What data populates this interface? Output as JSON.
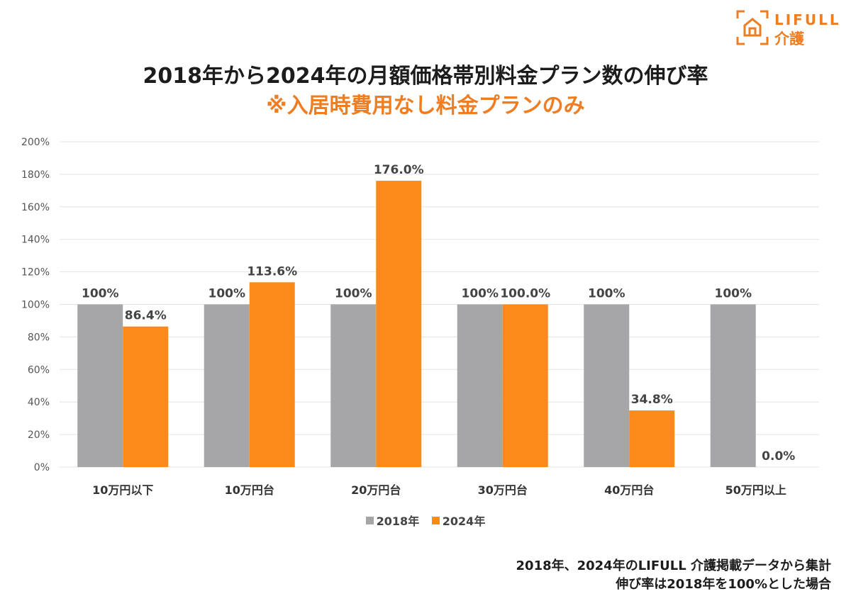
{
  "logo": {
    "brand": "LIFULL",
    "service": "介護"
  },
  "title": "2018年から2024年の月額価格帯別料金プラン数の伸び率",
  "subtitle": "※入居時費用なし料金プランのみ",
  "colors": {
    "series_2018": "#a6a5a7",
    "series_2024": "#fb8a1b",
    "accent": "#ef7d22",
    "grid": "#e3e3e3"
  },
  "chart_data": {
    "type": "bar",
    "title": "2018年から2024年の月額価格帯別料金プラン数の伸び率",
    "subtitle": "※入居時費用なし料金プランのみ",
    "categories": [
      "10万円以下",
      "10万円台",
      "20万円台",
      "30万円台",
      "40万円台",
      "50万円以上"
    ],
    "series": [
      {
        "name": "2018年",
        "values": [
          100,
          100,
          100,
          100,
          100,
          100
        ],
        "labels": [
          "100%",
          "100%",
          "100%",
          "100%",
          "100%",
          "100%"
        ]
      },
      {
        "name": "2024年",
        "values": [
          86.4,
          113.6,
          176.0,
          100.0,
          34.8,
          0.0
        ],
        "labels": [
          "86.4%",
          "113.6%",
          "176.0%",
          "100.0%",
          "34.8%",
          "0.0%"
        ]
      }
    ],
    "ylim": [
      0,
      200
    ],
    "yticks": [
      "0%",
      "20%",
      "40%",
      "60%",
      "80%",
      "100%",
      "120%",
      "140%",
      "160%",
      "180%",
      "200%"
    ],
    "xlabel": "",
    "ylabel": "",
    "grid": true,
    "legend_position": "bottom"
  },
  "legend": {
    "items": [
      "2018年",
      "2024年"
    ]
  },
  "notes": {
    "line1": "2018年、2024年のLIFULL 介護掲載データから集計",
    "line2": "伸び率は2018年を100%とした場合"
  }
}
